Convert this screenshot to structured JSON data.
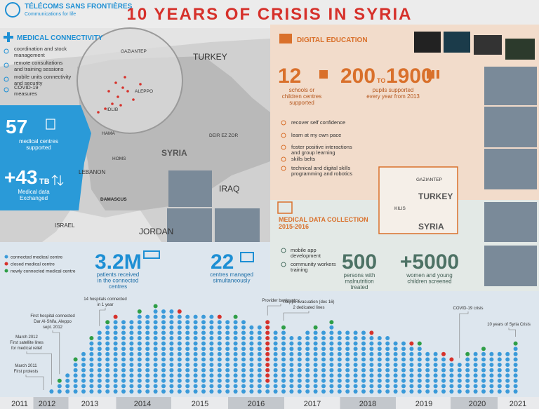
{
  "header": {
    "org_name": "TÉLÉCOMS SANS FRONTIÈRES",
    "org_tagline": "Communications for life",
    "title": "10 YEARS OF CRISIS IN SYRIA"
  },
  "medical_connectivity": {
    "title": "MEDICAL CONNECTIVITY",
    "items": [
      [
        "coordination and stock",
        "management"
      ],
      [
        "remote consultations",
        "and training sessions"
      ],
      [
        "mobile units connectivity",
        "and security"
      ],
      [
        "COVID-19",
        "measures"
      ]
    ],
    "centres": {
      "value": "57",
      "label": [
        "medical centres",
        "supported"
      ]
    },
    "data": {
      "value": "+43",
      "unit": "TB",
      "label": [
        "Medical data",
        "Exchanged"
      ]
    }
  },
  "map": {
    "labels": [
      "GAZIANTEP",
      "TURKEY",
      "ALEPPO",
      "IDLIB",
      "HAMA",
      "HOMS",
      "SYRIA",
      "DEIR EZ ZOR",
      "LEBANON",
      "DAMASCUS",
      "IRAQ",
      "ISRAEL",
      "JORDAN"
    ]
  },
  "digital_education": {
    "title": "DIGITAL EDUCATION",
    "schools": {
      "value": "12",
      "label": [
        "schools or",
        "children centres",
        "supported"
      ]
    },
    "pupils": {
      "from": "200",
      "to_word": "TO",
      "to": "1900",
      "label": [
        "pupils supported",
        "every year from 2013"
      ]
    },
    "items": [
      [
        "recover self confidence"
      ],
      [
        "learn at my own pace"
      ],
      [
        "foster positive interactions",
        "and group learning"
      ],
      [
        "skills belts"
      ],
      [
        "technical and digital skills",
        "programming and robotics"
      ]
    ]
  },
  "inset_map": {
    "labels": [
      "GAZIANTEP",
      "TURKEY",
      "KILIS",
      "SYRIA"
    ]
  },
  "medical_data_collection": {
    "title": [
      "MEDICAL DATA COLLECTION",
      "2015-2016"
    ],
    "items": [
      [
        "mobile app",
        "development"
      ],
      [
        "community workers",
        "training"
      ]
    ],
    "persons": {
      "value": "500",
      "label": [
        "persons with",
        "malnutrition",
        "treated"
      ]
    },
    "women": {
      "value": "+5000",
      "label": [
        "women and  young",
        "children screened"
      ]
    }
  },
  "patients": {
    "value": "3.2M",
    "label": [
      "patients received",
      "in the connected",
      "centres"
    ]
  },
  "centres_managed": {
    "value": "22",
    "label": [
      "centres managed",
      "simultaneously"
    ]
  },
  "timeline": {
    "series": [
      {
        "name": "connected medical centre",
        "color": "#3a9ad9",
        "values": [
          0,
          1,
          2,
          4,
          6,
          8,
          10,
          12,
          13,
          14,
          14,
          14,
          15,
          15,
          16,
          16,
          16,
          15,
          15,
          15,
          15,
          15,
          14,
          14,
          14,
          14,
          13,
          13,
          2,
          12,
          12,
          11,
          11,
          12,
          12,
          12,
          13,
          12,
          12,
          12,
          12,
          11,
          11,
          11,
          10,
          10,
          9,
          9,
          8,
          8,
          7,
          6,
          6,
          7,
          8,
          8,
          8,
          8,
          8,
          9
        ]
      },
      {
        "name": "closed medical centre",
        "color": "#d6312b",
        "values": [
          0,
          0,
          0,
          0,
          0,
          0,
          0,
          0,
          0,
          1,
          0,
          0,
          0,
          0,
          0,
          0,
          0,
          1,
          0,
          0,
          0,
          0,
          1,
          0,
          0,
          0,
          0,
          0,
          12,
          0,
          0,
          0,
          0,
          0,
          0,
          0,
          0,
          0,
          0,
          0,
          0,
          1,
          0,
          0,
          0,
          0,
          1,
          0,
          0,
          0,
          1,
          1,
          0,
          0,
          0,
          0,
          0,
          0,
          0,
          0
        ]
      },
      {
        "name": "newly connected medical centre",
        "color": "#2e9e46",
        "values": [
          0,
          0,
          1,
          0,
          1,
          0,
          1,
          0,
          1,
          0,
          0,
          0,
          1,
          0,
          1,
          0,
          0,
          0,
          0,
          0,
          0,
          0,
          0,
          0,
          1,
          0,
          0,
          0,
          0,
          0,
          1,
          0,
          0,
          0,
          1,
          0,
          1,
          0,
          0,
          0,
          0,
          0,
          0,
          0,
          0,
          0,
          0,
          1,
          0,
          0,
          0,
          0,
          0,
          1,
          0,
          1,
          0,
          0,
          0,
          1
        ]
      }
    ],
    "milestones": [
      [
        "March 2011",
        "First protests"
      ],
      [
        "March 2012",
        "First satellite lines",
        "for medical relief"
      ],
      [
        "First hospital connected",
        "Dar Al-Shifa, Aleppo",
        "sept. 2012"
      ],
      [
        "14 hospitals connected",
        "in 1 year"
      ],
      [
        "Provider bankruptcy"
      ],
      [
        "Aleppo evacuation (dec 16)",
        "2 dedicated lines"
      ],
      [
        "COVID-19 crisis"
      ],
      [
        "10 years of Syria Crisis"
      ]
    ],
    "years": [
      "2011",
      "2012",
      "2013",
      "2014",
      "2015",
      "2016",
      "2017",
      "2018",
      "2019",
      "2020",
      "2021"
    ]
  }
}
